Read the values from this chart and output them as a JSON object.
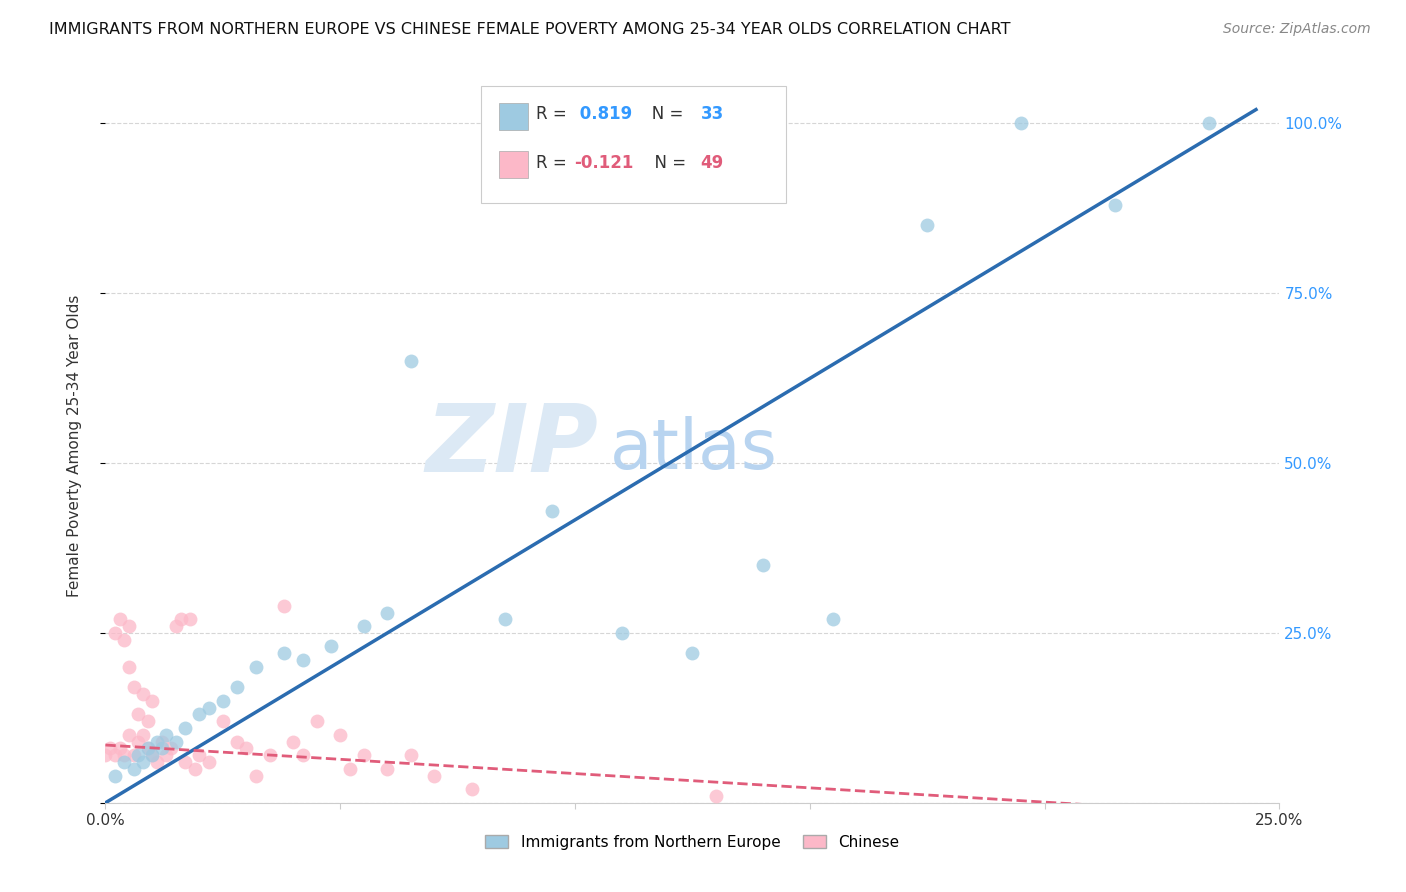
{
  "title": "IMMIGRANTS FROM NORTHERN EUROPE VS CHINESE FEMALE POVERTY AMONG 25-34 YEAR OLDS CORRELATION CHART",
  "source": "Source: ZipAtlas.com",
  "ylabel": "Female Poverty Among 25-34 Year Olds",
  "watermark_zip": "ZIP",
  "watermark_atlas": "atlas",
  "xlim": [
    0.0,
    0.25
  ],
  "ylim": [
    0.0,
    1.05
  ],
  "x_ticks": [
    0.0,
    0.05,
    0.1,
    0.15,
    0.2,
    0.25
  ],
  "x_tick_labels": [
    "0.0%",
    "",
    "",
    "",
    "",
    "25.0%"
  ],
  "y_ticks": [
    0.0,
    0.25,
    0.5,
    0.75,
    1.0
  ],
  "y_tick_labels": [
    "",
    "25.0%",
    "50.0%",
    "75.0%",
    "100.0%"
  ],
  "legend1_label": "Immigrants from Northern Europe",
  "legend2_label": "Chinese",
  "r1": 0.819,
  "n1": 33,
  "r2": -0.121,
  "n2": 49,
  "blue_color": "#9ecae1",
  "blue_line_color": "#2b6cb0",
  "pink_color": "#fcb8c8",
  "pink_line_color": "#e05c7a",
  "scatter_size": 100,
  "blue_line_x0": 0.0,
  "blue_line_y0": 0.0,
  "blue_line_x1": 0.245,
  "blue_line_y1": 1.02,
  "pink_line_x0": 0.0,
  "pink_line_y0": 0.085,
  "pink_line_x1": 0.25,
  "pink_line_y1": -0.02,
  "blue_points_x": [
    0.002,
    0.004,
    0.006,
    0.007,
    0.008,
    0.009,
    0.01,
    0.011,
    0.012,
    0.013,
    0.015,
    0.017,
    0.02,
    0.022,
    0.025,
    0.028,
    0.032,
    0.038,
    0.042,
    0.048,
    0.055,
    0.06,
    0.065,
    0.085,
    0.095,
    0.11,
    0.125,
    0.14,
    0.155,
    0.175,
    0.195,
    0.215,
    0.235
  ],
  "blue_points_y": [
    0.04,
    0.06,
    0.05,
    0.07,
    0.06,
    0.08,
    0.07,
    0.09,
    0.08,
    0.1,
    0.09,
    0.11,
    0.13,
    0.14,
    0.15,
    0.17,
    0.2,
    0.22,
    0.21,
    0.23,
    0.26,
    0.28,
    0.65,
    0.27,
    0.43,
    0.25,
    0.22,
    0.35,
    0.27,
    0.85,
    1.0,
    0.88,
    1.0
  ],
  "pink_points_x": [
    0.0,
    0.001,
    0.002,
    0.002,
    0.003,
    0.003,
    0.004,
    0.004,
    0.005,
    0.005,
    0.005,
    0.006,
    0.006,
    0.007,
    0.007,
    0.008,
    0.008,
    0.009,
    0.009,
    0.01,
    0.01,
    0.011,
    0.012,
    0.013,
    0.014,
    0.015,
    0.016,
    0.017,
    0.018,
    0.019,
    0.02,
    0.022,
    0.025,
    0.028,
    0.03,
    0.032,
    0.035,
    0.038,
    0.04,
    0.042,
    0.045,
    0.05,
    0.052,
    0.055,
    0.06,
    0.065,
    0.07,
    0.078,
    0.13
  ],
  "pink_points_y": [
    0.07,
    0.08,
    0.07,
    0.25,
    0.08,
    0.27,
    0.07,
    0.24,
    0.1,
    0.2,
    0.26,
    0.07,
    0.17,
    0.09,
    0.13,
    0.1,
    0.16,
    0.08,
    0.12,
    0.07,
    0.15,
    0.06,
    0.09,
    0.07,
    0.08,
    0.26,
    0.27,
    0.06,
    0.27,
    0.05,
    0.07,
    0.06,
    0.12,
    0.09,
    0.08,
    0.04,
    0.07,
    0.29,
    0.09,
    0.07,
    0.12,
    0.1,
    0.05,
    0.07,
    0.05,
    0.07,
    0.04,
    0.02,
    0.01
  ]
}
